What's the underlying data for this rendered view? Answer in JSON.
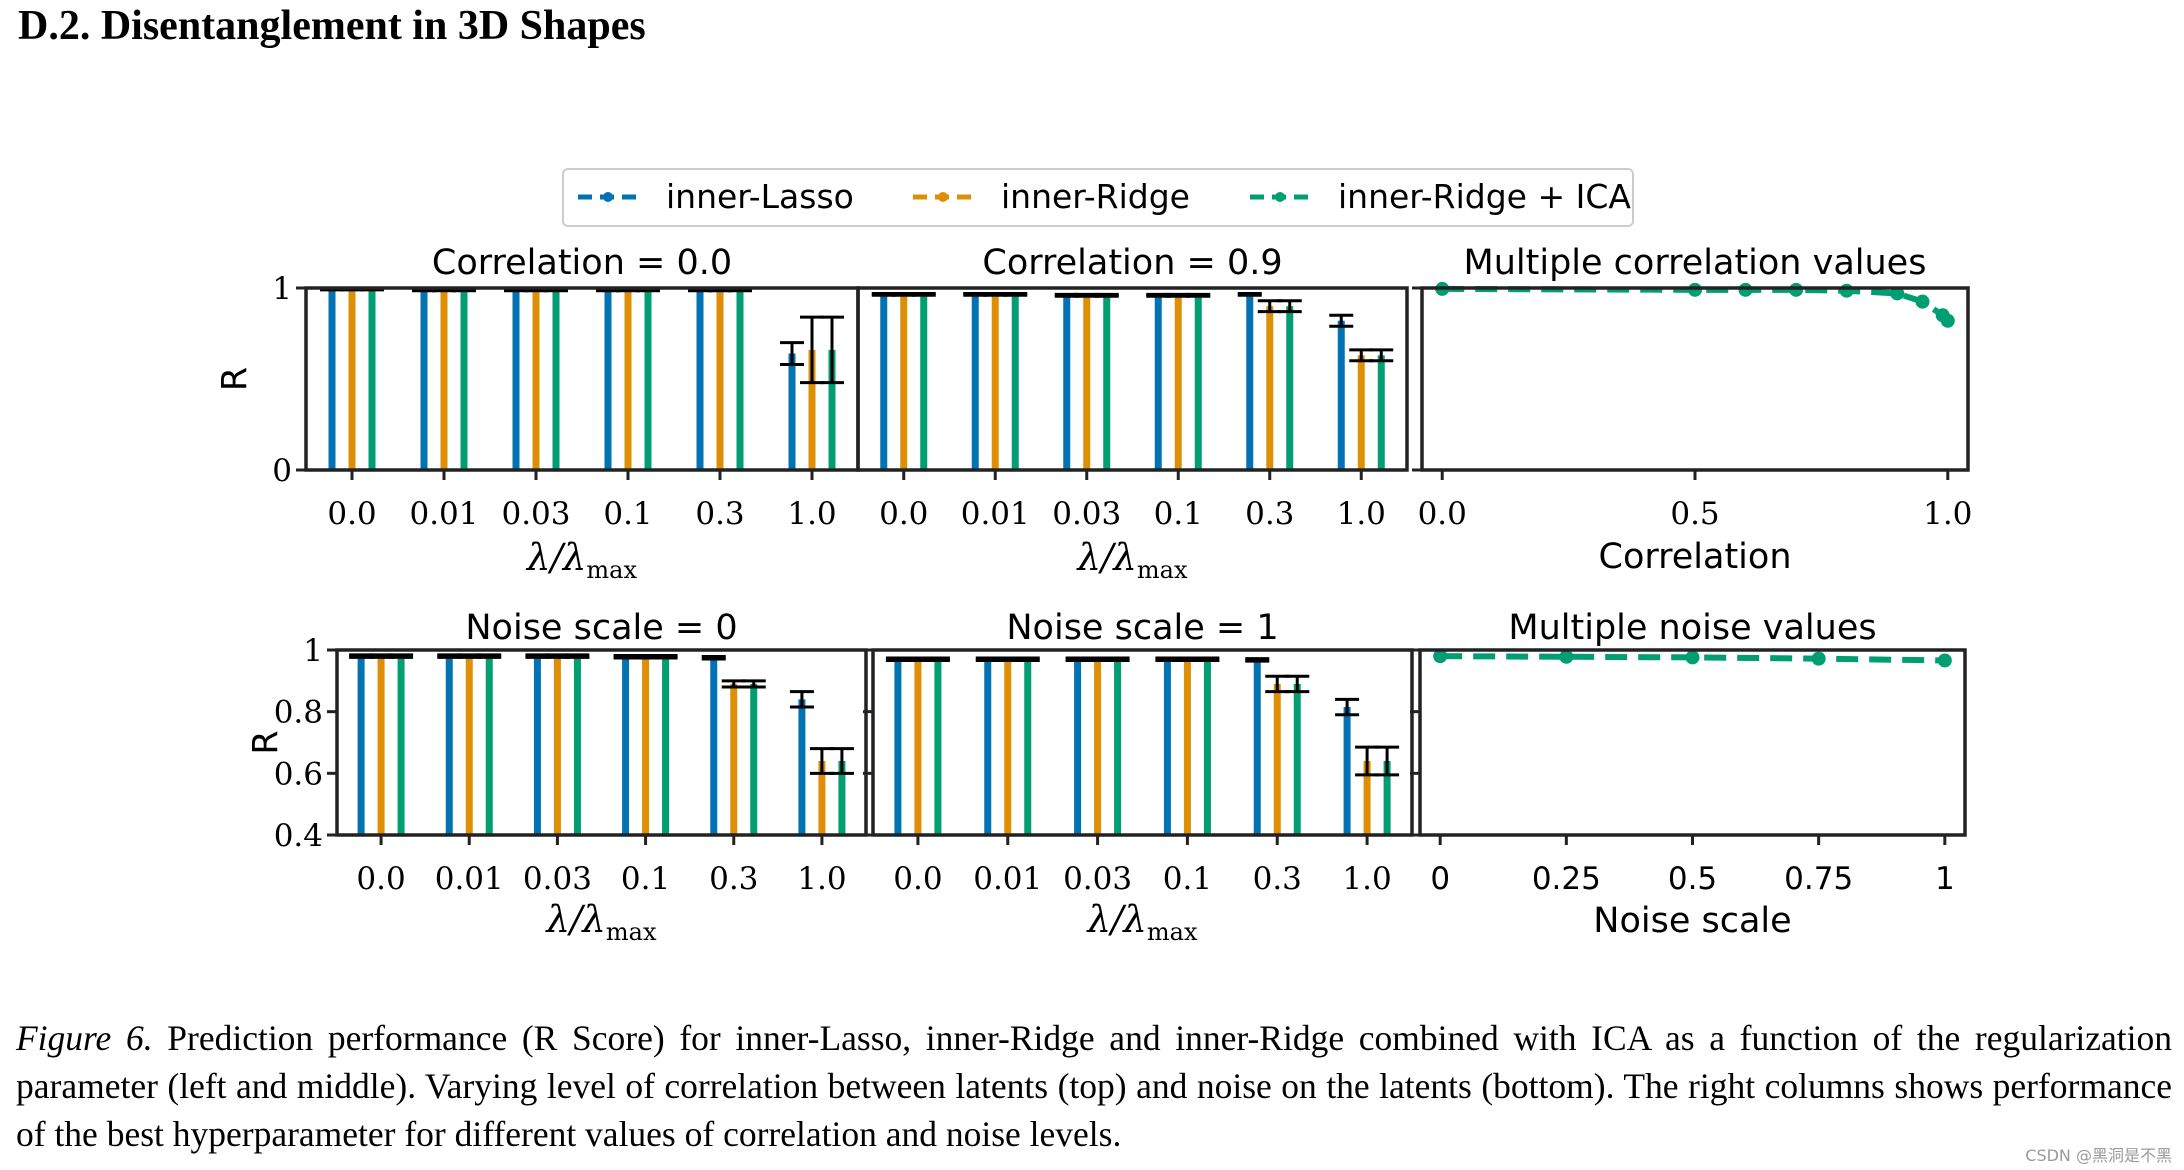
{
  "section_heading": "D.2. Disentanglement in 3D Shapes",
  "legend": {
    "entries": [
      {
        "label": "inner-Lasso",
        "color": "#0173b2"
      },
      {
        "label": "inner-Ridge",
        "color": "#de8f05"
      },
      {
        "label": "inner-Ridge + ICA",
        "color": "#029e73"
      }
    ]
  },
  "chart_data": [
    {
      "type": "bar",
      "title": "Correlation = 0.0",
      "xlabel": "λ/λmax",
      "ylabel": "R",
      "ylim": [
        0,
        1
      ],
      "yticks": [
        "1",
        "0"
      ],
      "yticks_values": [
        1,
        0
      ],
      "categories": [
        "0.0",
        "0.01",
        "0.03",
        "0.1",
        "0.3",
        "1.0"
      ],
      "series": [
        {
          "name": "inner-Lasso",
          "values": [
            0.995,
            0.99,
            0.99,
            0.99,
            0.99,
            0.64
          ],
          "errors": [
            0.005,
            0.005,
            0.005,
            0.005,
            0.005,
            0.06
          ]
        },
        {
          "name": "inner-Ridge",
          "values": [
            0.995,
            0.99,
            0.99,
            0.99,
            0.99,
            0.66
          ],
          "errors": [
            0.005,
            0.005,
            0.005,
            0.005,
            0.005,
            0.18
          ]
        },
        {
          "name": "inner-Ridge + ICA",
          "values": [
            0.995,
            0.99,
            0.99,
            0.99,
            0.99,
            0.66
          ],
          "errors": [
            0.005,
            0.005,
            0.005,
            0.005,
            0.005,
            0.18
          ]
        }
      ]
    },
    {
      "type": "bar",
      "title": "Correlation = 0.9",
      "xlabel": "λ/λmax",
      "ylabel": "",
      "ylim": [
        0,
        1
      ],
      "yticks": [],
      "yticks_values": [
        1,
        0
      ],
      "categories": [
        "0.0",
        "0.01",
        "0.03",
        "0.1",
        "0.3",
        "1.0"
      ],
      "series": [
        {
          "name": "inner-Lasso",
          "values": [
            0.965,
            0.965,
            0.96,
            0.96,
            0.965,
            0.82
          ],
          "errors": [
            0.005,
            0.005,
            0.005,
            0.005,
            0.005,
            0.03
          ]
        },
        {
          "name": "inner-Ridge",
          "values": [
            0.965,
            0.965,
            0.96,
            0.96,
            0.9,
            0.63
          ],
          "errors": [
            0.005,
            0.005,
            0.005,
            0.005,
            0.03,
            0.03
          ]
        },
        {
          "name": "inner-Ridge + ICA",
          "values": [
            0.965,
            0.965,
            0.96,
            0.96,
            0.9,
            0.63
          ],
          "errors": [
            0.005,
            0.005,
            0.005,
            0.005,
            0.03,
            0.03
          ]
        }
      ]
    },
    {
      "type": "line",
      "title": "Multiple correlation values",
      "xlabel": "Correlation",
      "ylabel": "",
      "xlim": [
        -0.04,
        1.04
      ],
      "ylim": [
        0,
        1
      ],
      "xticks": [
        "0.0",
        "0.5",
        "1.0"
      ],
      "xticks_values": [
        0,
        0.5,
        1.0
      ],
      "yticks_values": [
        1,
        0
      ],
      "series": [
        {
          "name": "inner-Ridge + ICA",
          "x": [
            0,
            0.5,
            0.6,
            0.7,
            0.8,
            0.9,
            0.95,
            0.99,
            1.0
          ],
          "y": [
            0.995,
            0.99,
            0.99,
            0.99,
            0.985,
            0.97,
            0.925,
            0.85,
            0.82
          ]
        }
      ]
    },
    {
      "type": "bar",
      "title": "Noise scale = 0",
      "xlabel": "λ/λmax",
      "ylabel": "R",
      "ylim": [
        0.4,
        1
      ],
      "yticks": [
        "1",
        "0.8",
        "0.6",
        "0.4"
      ],
      "yticks_values": [
        1,
        0.8,
        0.6,
        0.4
      ],
      "categories": [
        "0.0",
        "0.01",
        "0.03",
        "0.1",
        "0.3",
        "1.0"
      ],
      "series": [
        {
          "name": "inner-Lasso",
          "values": [
            0.98,
            0.98,
            0.98,
            0.978,
            0.975,
            0.84
          ],
          "errors": [
            0.004,
            0.004,
            0.004,
            0.004,
            0.004,
            0.025
          ]
        },
        {
          "name": "inner-Ridge",
          "values": [
            0.98,
            0.98,
            0.98,
            0.978,
            0.89,
            0.64
          ],
          "errors": [
            0.004,
            0.004,
            0.004,
            0.004,
            0.01,
            0.04
          ]
        },
        {
          "name": "inner-Ridge + ICA",
          "values": [
            0.98,
            0.98,
            0.98,
            0.978,
            0.89,
            0.64
          ],
          "errors": [
            0.004,
            0.004,
            0.004,
            0.004,
            0.01,
            0.04
          ]
        }
      ]
    },
    {
      "type": "bar",
      "title": "Noise scale = 1",
      "xlabel": "λ/λmax",
      "ylabel": "",
      "ylim": [
        0.4,
        1
      ],
      "yticks": [],
      "yticks_values": [
        1,
        0.8,
        0.6,
        0.4
      ],
      "categories": [
        "0.0",
        "0.01",
        "0.03",
        "0.1",
        "0.3",
        "1.0"
      ],
      "series": [
        {
          "name": "inner-Lasso",
          "values": [
            0.97,
            0.97,
            0.97,
            0.97,
            0.968,
            0.815
          ],
          "errors": [
            0.004,
            0.004,
            0.004,
            0.004,
            0.004,
            0.025
          ]
        },
        {
          "name": "inner-Ridge",
          "values": [
            0.97,
            0.97,
            0.97,
            0.97,
            0.89,
            0.64
          ],
          "errors": [
            0.004,
            0.004,
            0.004,
            0.004,
            0.025,
            0.045
          ]
        },
        {
          "name": "inner-Ridge + ICA",
          "values": [
            0.97,
            0.97,
            0.97,
            0.97,
            0.89,
            0.64
          ],
          "errors": [
            0.004,
            0.004,
            0.004,
            0.004,
            0.025,
            0.045
          ]
        }
      ]
    },
    {
      "type": "line",
      "title": "Multiple noise values",
      "xlabel": "Noise scale",
      "ylabel": "",
      "xlim": [
        -0.04,
        1.04
      ],
      "ylim": [
        0.4,
        1
      ],
      "xticks": [
        "0",
        "0.25",
        "0.5",
        "0.75",
        "1"
      ],
      "xticks_values": [
        0,
        0.25,
        0.5,
        0.75,
        1
      ],
      "yticks_values": [
        1,
        0.8,
        0.6,
        0.4
      ],
      "series": [
        {
          "name": "inner-Ridge + ICA",
          "x": [
            0,
            0.25,
            0.5,
            0.75,
            1.0
          ],
          "y": [
            0.98,
            0.978,
            0.976,
            0.972,
            0.966
          ]
        }
      ]
    }
  ],
  "caption": {
    "label": "Figure 6.",
    "text": "Prediction performance (R Score) for inner-Lasso, inner-Ridge and inner-Ridge combined with ICA as a function of the regularization parameter (left and middle). Varying level of correlation between latents (top) and noise on the latents (bottom). The right columns shows performance of the best hyperparameter for different values of correlation and noise levels."
  },
  "watermark": "CSDN @黑洞是不黑"
}
